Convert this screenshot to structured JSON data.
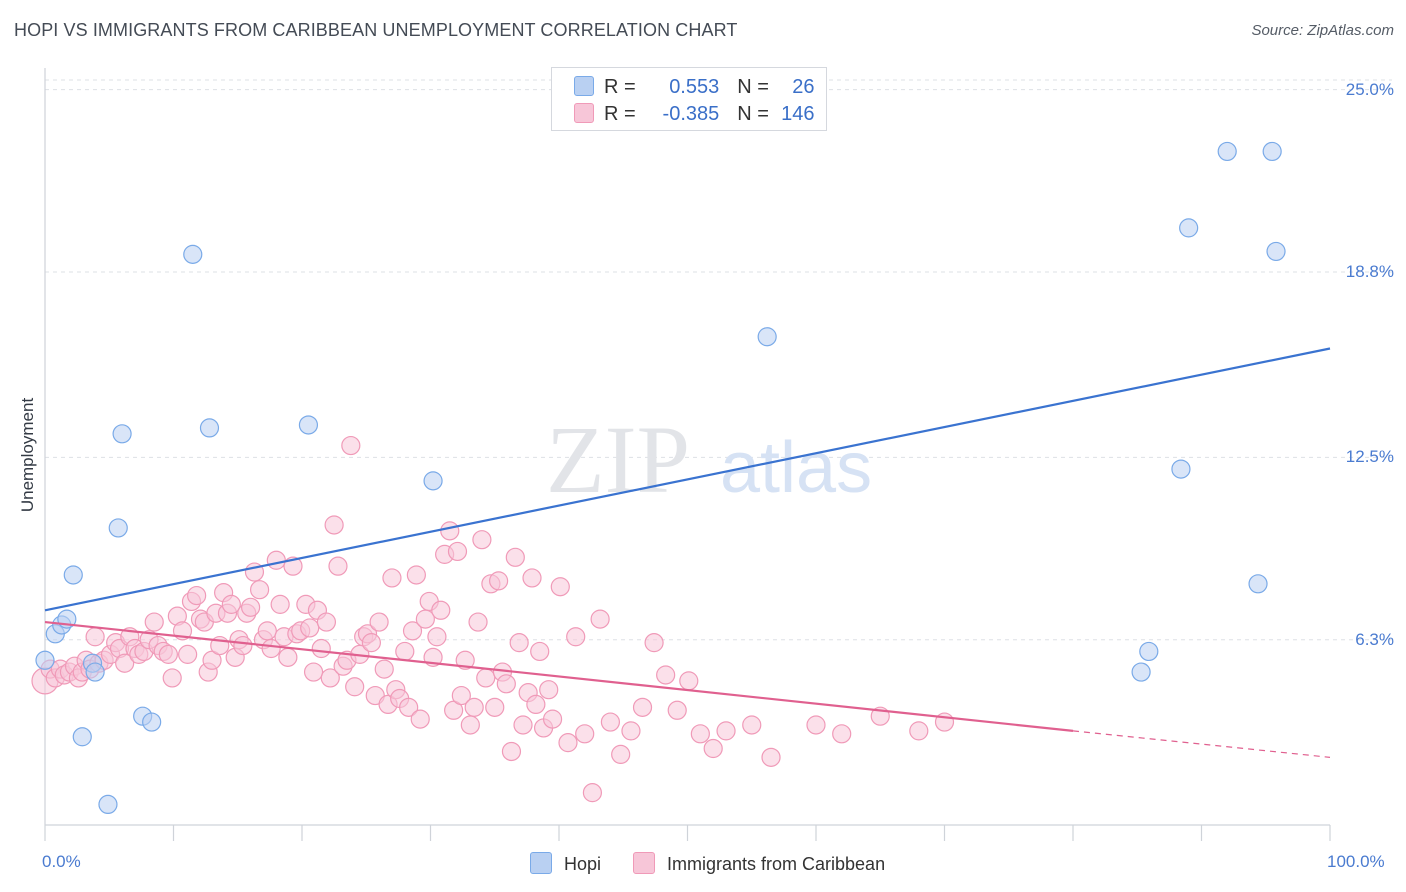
{
  "chart_data": {
    "type": "scatter",
    "title": "HOPI VS IMMIGRANTS FROM CARIBBEAN UNEMPLOYMENT CORRELATION CHART",
    "source": "Source: ZipAtlas.com",
    "xlabel": "",
    "ylabel": "Unemployment",
    "xlim": [
      0,
      100
    ],
    "ylim": [
      0,
      25.6
    ],
    "y_ticks": [
      {
        "value": 6.3,
        "label": "6.3%"
      },
      {
        "value": 12.5,
        "label": "12.5%"
      },
      {
        "value": 18.8,
        "label": "18.8%"
      },
      {
        "value": 25.0,
        "label": "25.0%"
      }
    ],
    "x_ticks": [
      {
        "value": 0,
        "label": "0.0%"
      },
      {
        "value": 100,
        "label": "100.0%"
      }
    ],
    "watermark": {
      "zip": "ZIP",
      "atlas": "atlas"
    },
    "legend": {
      "rows": [
        {
          "r_label": "R = ",
          "r_value": "0.553",
          "n_label": "N = ",
          "n_value": "26"
        },
        {
          "r_label": "R = ",
          "r_value": "-0.385",
          "n_label": "N = ",
          "n_value": "146"
        }
      ]
    },
    "series": [
      {
        "name": "Hopi",
        "color": "#7aaae8",
        "fill": "#b9d0f2",
        "line_color": "#3a73d0",
        "trend": {
          "x0": 0,
          "y0": 7.3,
          "x1": 100,
          "y1": 16.2
        },
        "points": [
          [
            0,
            5.6
          ],
          [
            0.8,
            6.5
          ],
          [
            1.3,
            6.8
          ],
          [
            1.7,
            7.0
          ],
          [
            2.2,
            8.5
          ],
          [
            2.9,
            3.0
          ],
          [
            3.7,
            5.5
          ],
          [
            3.9,
            5.2
          ],
          [
            4.9,
            0.7
          ],
          [
            5.7,
            10.1
          ],
          [
            6.0,
            13.3
          ],
          [
            7.6,
            3.7
          ],
          [
            8.3,
            3.5
          ],
          [
            11.5,
            19.4
          ],
          [
            12.8,
            13.5
          ],
          [
            20.5,
            13.6
          ],
          [
            30.2,
            11.7
          ],
          [
            56.2,
            16.6
          ],
          [
            85.3,
            5.2
          ],
          [
            85.9,
            5.9
          ],
          [
            88.4,
            12.1
          ],
          [
            89.0,
            20.3
          ],
          [
            92.0,
            22.9
          ],
          [
            94.4,
            8.2
          ],
          [
            95.5,
            22.9
          ],
          [
            95.8,
            19.5
          ]
        ]
      },
      {
        "name": "Immigrants from Caribbean",
        "color": "#f09ab8",
        "fill": "#f7c6d8",
        "line_color": "#e0608f",
        "trend": {
          "x0": 0,
          "y0": 6.9,
          "x1": 80,
          "y1": 3.2
        },
        "trend_dashed": {
          "x0": 80,
          "y0": 3.2,
          "x1": 100,
          "y1": 2.3
        },
        "points": [
          [
            0,
            4.9
          ],
          [
            0.4,
            5.3
          ],
          [
            0.8,
            5.0
          ],
          [
            1.2,
            5.3
          ],
          [
            1.5,
            5.1
          ],
          [
            1.9,
            5.2
          ],
          [
            2.3,
            5.4
          ],
          [
            2.6,
            5.0
          ],
          [
            2.9,
            5.2
          ],
          [
            3.2,
            5.6
          ],
          [
            3.5,
            5.3
          ],
          [
            3.9,
            6.4
          ],
          [
            4.2,
            5.5
          ],
          [
            4.6,
            5.6
          ],
          [
            5.1,
            5.8
          ],
          [
            5.5,
            6.2
          ],
          [
            5.8,
            6.0
          ],
          [
            6.2,
            5.5
          ],
          [
            6.6,
            6.4
          ],
          [
            7.0,
            6.0
          ],
          [
            7.3,
            5.8
          ],
          [
            7.7,
            5.9
          ],
          [
            8.1,
            6.3
          ],
          [
            8.5,
            6.9
          ],
          [
            8.8,
            6.1
          ],
          [
            9.2,
            5.9
          ],
          [
            9.6,
            5.8
          ],
          [
            9.9,
            5.0
          ],
          [
            10.3,
            7.1
          ],
          [
            10.7,
            6.6
          ],
          [
            11.1,
            5.8
          ],
          [
            11.4,
            7.6
          ],
          [
            11.8,
            7.8
          ],
          [
            12.1,
            7.0
          ],
          [
            12.4,
            6.9
          ],
          [
            12.7,
            5.2
          ],
          [
            13.0,
            5.6
          ],
          [
            13.3,
            7.2
          ],
          [
            13.6,
            6.1
          ],
          [
            13.9,
            7.9
          ],
          [
            14.2,
            7.2
          ],
          [
            14.5,
            7.5
          ],
          [
            14.8,
            5.7
          ],
          [
            15.1,
            6.3
          ],
          [
            15.4,
            6.1
          ],
          [
            15.7,
            7.2
          ],
          [
            16.0,
            7.4
          ],
          [
            16.3,
            8.6
          ],
          [
            16.7,
            8.0
          ],
          [
            17.0,
            6.3
          ],
          [
            17.3,
            6.6
          ],
          [
            17.6,
            6.0
          ],
          [
            18.0,
            9.0
          ],
          [
            18.3,
            7.5
          ],
          [
            18.6,
            6.4
          ],
          [
            18.9,
            5.7
          ],
          [
            19.3,
            8.8
          ],
          [
            19.6,
            6.5
          ],
          [
            19.9,
            6.6
          ],
          [
            20.3,
            7.5
          ],
          [
            20.6,
            6.7
          ],
          [
            20.9,
            5.2
          ],
          [
            21.2,
            7.3
          ],
          [
            21.5,
            6.0
          ],
          [
            21.9,
            6.9
          ],
          [
            22.2,
            5.0
          ],
          [
            22.5,
            10.2
          ],
          [
            22.8,
            8.8
          ],
          [
            23.2,
            5.4
          ],
          [
            23.5,
            5.6
          ],
          [
            23.8,
            12.9
          ],
          [
            24.1,
            4.7
          ],
          [
            24.5,
            5.8
          ],
          [
            24.8,
            6.4
          ],
          [
            25.1,
            6.5
          ],
          [
            25.4,
            6.2
          ],
          [
            25.7,
            4.4
          ],
          [
            26.0,
            6.9
          ],
          [
            26.4,
            5.3
          ],
          [
            26.7,
            4.1
          ],
          [
            27.0,
            8.4
          ],
          [
            27.3,
            4.6
          ],
          [
            27.6,
            4.3
          ],
          [
            28.0,
            5.9
          ],
          [
            28.3,
            4.0
          ],
          [
            28.6,
            6.6
          ],
          [
            28.9,
            8.5
          ],
          [
            29.2,
            3.6
          ],
          [
            29.6,
            7.0
          ],
          [
            29.9,
            7.6
          ],
          [
            30.2,
            5.7
          ],
          [
            30.5,
            6.4
          ],
          [
            30.8,
            7.3
          ],
          [
            31.1,
            9.2
          ],
          [
            31.5,
            10.0
          ],
          [
            31.8,
            3.9
          ],
          [
            32.1,
            9.3
          ],
          [
            32.4,
            4.4
          ],
          [
            32.7,
            5.6
          ],
          [
            33.1,
            3.4
          ],
          [
            33.4,
            4.0
          ],
          [
            33.7,
            6.9
          ],
          [
            34.0,
            9.7
          ],
          [
            34.3,
            5.0
          ],
          [
            34.7,
            8.2
          ],
          [
            35.0,
            4.0
          ],
          [
            35.3,
            8.3
          ],
          [
            35.6,
            5.2
          ],
          [
            35.9,
            4.8
          ],
          [
            36.3,
            2.5
          ],
          [
            36.6,
            9.1
          ],
          [
            36.9,
            6.2
          ],
          [
            37.2,
            3.4
          ],
          [
            37.6,
            4.5
          ],
          [
            37.9,
            8.4
          ],
          [
            38.2,
            4.1
          ],
          [
            38.5,
            5.9
          ],
          [
            38.8,
            3.3
          ],
          [
            39.2,
            4.6
          ],
          [
            39.5,
            3.6
          ],
          [
            40.1,
            8.1
          ],
          [
            40.7,
            2.8
          ],
          [
            41.3,
            6.4
          ],
          [
            42.0,
            3.1
          ],
          [
            42.6,
            1.1
          ],
          [
            43.2,
            7.0
          ],
          [
            44.0,
            3.5
          ],
          [
            44.8,
            2.4
          ],
          [
            45.6,
            3.2
          ],
          [
            46.5,
            4.0
          ],
          [
            47.4,
            6.2
          ],
          [
            48.3,
            5.1
          ],
          [
            49.2,
            3.9
          ],
          [
            50.1,
            4.9
          ],
          [
            51.0,
            3.1
          ],
          [
            52.0,
            2.6
          ],
          [
            53.0,
            3.2
          ],
          [
            55.0,
            3.4
          ],
          [
            56.5,
            2.3
          ],
          [
            60.0,
            3.4
          ],
          [
            62.0,
            3.1
          ],
          [
            65.0,
            3.7
          ],
          [
            68.0,
            3.2
          ],
          [
            70.0,
            3.5
          ]
        ]
      }
    ]
  }
}
